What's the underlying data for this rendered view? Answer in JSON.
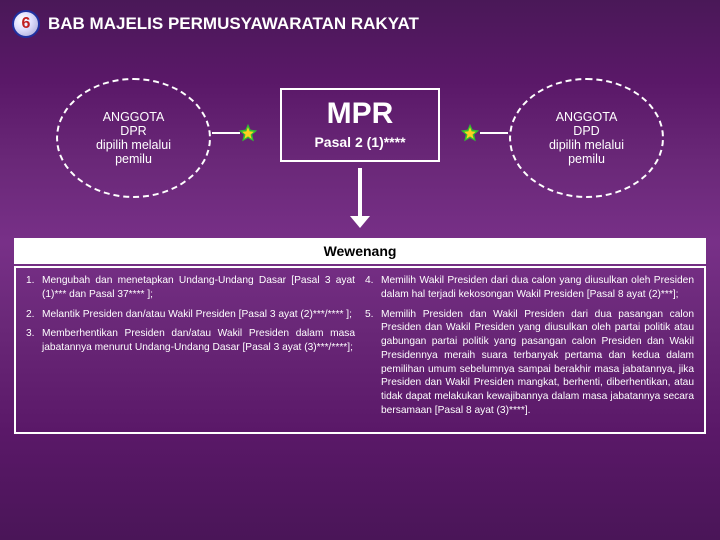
{
  "header": {
    "logo_text": "6",
    "title": "BAB MAJELIS PERMUSYAWARATAN RAKYAT"
  },
  "left_oval": {
    "line1": "ANGGOTA",
    "line2": "DPR",
    "line3": "dipilih melalui",
    "line4": "pemilu"
  },
  "right_oval": {
    "line1": "ANGGOTA",
    "line2": "DPD",
    "line3": "dipilih melalui",
    "line4": "pemilu"
  },
  "center": {
    "big": "MPR",
    "sub": "Pasal 2 (1)****"
  },
  "section_title": "Wewenang",
  "left_items": [
    {
      "n": "1.",
      "t": "Mengubah dan menetapkan Undang-Undang Dasar [Pasal 3 ayat (1)*** dan Pasal 37**** ];"
    },
    {
      "n": "2.",
      "t": "Melantik Presiden dan/atau Wakil Presiden [Pasal 3 ayat (2)***/**** ];"
    },
    {
      "n": "3.",
      "t": "Memberhentikan Presiden dan/atau Wakil Presiden dalam masa jabatannya menurut Undang-Undang Dasar [Pasal 3 ayat (3)***/****];"
    }
  ],
  "right_items": [
    {
      "n": "4.",
      "t": "Memilih Wakil Presiden dari dua calon yang diusulkan oleh Presiden dalam hal terjadi kekosongan Wakil Presiden [Pasal 8 ayat (2)***];"
    },
    {
      "n": "5.",
      "t": "Memilih Presiden dan Wakil Presiden dari dua pasangan calon Presiden dan Wakil Presiden yang diusulkan oleh partai politik atau gabungan partai politik yang pasangan calon Presiden dan Wakil Presidennya meraih suara terbanyak pertama dan kedua dalam pemilihan umum sebelumnya sampai berakhir masa jabatannya, jika Presiden dan Wakil Presiden mangkat, berhenti, diberhentikan, atau tidak dapat melakukan kewajibannya dalam masa jabatannya secara bersamaan [Pasal 8 ayat (3)****]."
    }
  ],
  "colors": {
    "star_outer": "#30c030",
    "star_inner": "#ffd020"
  }
}
